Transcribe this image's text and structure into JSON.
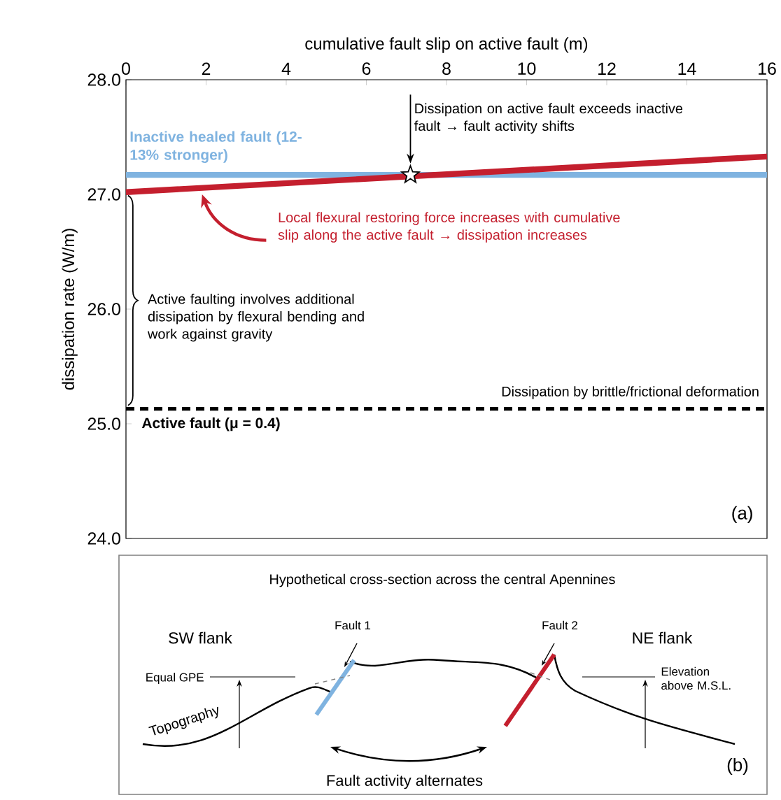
{
  "chart_data": [
    {
      "type": "line",
      "xlabel": "cumulative fault slip on active fault (m)",
      "ylabel": "dissipation rate (W/m)",
      "xlim": [
        0,
        16
      ],
      "xticks": [
        0,
        2,
        4,
        6,
        8,
        10,
        12,
        14,
        16
      ],
      "ylim": [
        24,
        28
      ],
      "yticks": [
        {
          "value": 24,
          "label": "24.0"
        },
        {
          "value": 25,
          "label": "25.0"
        },
        {
          "value": 26,
          "label": "26.0"
        },
        {
          "value": 27,
          "label": "27.0"
        },
        {
          "value": 28,
          "label": "28.0"
        }
      ],
      "series": [
        {
          "type": "line",
          "name": "Inactive healed fault (12-13% stronger)",
          "color": "#7fb3e0",
          "x": [
            0,
            16
          ],
          "values": [
            27.17,
            27.17
          ]
        },
        {
          "type": "line",
          "color": "#c41f2e",
          "x": [
            0,
            16
          ],
          "values": [
            27.02,
            27.33
          ]
        },
        {
          "type": "line",
          "name": "Active fault (μ = 0.4)",
          "color": "#000000",
          "line_style": "dashed",
          "x": [
            0,
            16
          ],
          "values": [
            25.13,
            25.13
          ]
        },
        {
          "type": "scatter",
          "marker": "star",
          "color": "#000000",
          "x": [
            7.1
          ],
          "values": [
            27.17
          ]
        }
      ],
      "annotations": [
        {
          "text": "Dissipation on active fault exceeds inactive fault → fault activity shifts",
          "x": 7.1,
          "y": 27.17
        },
        "Local flexural restoring force increases with cumulative slip along the active fault → dissipation increases",
        "Active faulting involves additional dissipation by flexural bending and work against gravity",
        "Dissipation by brittle/frictional deformation",
        "(a)"
      ]
    },
    {
      "type": "other",
      "title": "Hypothetical cross-section across the central Apennines",
      "annotations": [
        "SW flank",
        "Fault 1",
        "Fault 2",
        "NE flank",
        "Equal GPE",
        "Elevation above M.S.L.",
        "Topography",
        "Fault activity alternates",
        "(b)"
      ]
    }
  ]
}
